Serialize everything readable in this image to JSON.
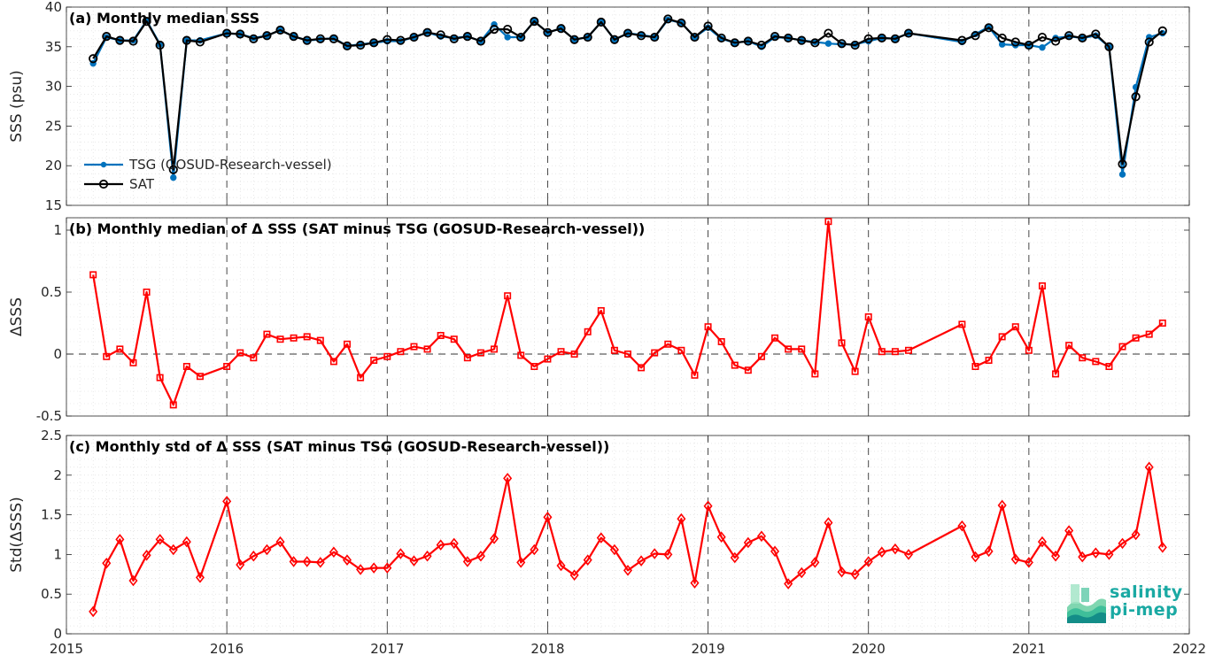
{
  "chart_data": [
    {
      "type": "line",
      "title": "(a) Monthly median SSS",
      "ylabel": "SSS (psu)",
      "xlim": [
        "2015",
        "2022"
      ],
      "ylim": [
        15,
        40
      ],
      "yticks": [
        15,
        20,
        25,
        30,
        35,
        40
      ],
      "legend_placement": "left",
      "series": [
        {
          "name": "TSG (GOSUD-Research-vessel)",
          "color": "#0072bd",
          "marker": "filled-circle",
          "x": [
            "2015-03",
            "2015-04",
            "2015-05",
            "2015-06",
            "2015-07",
            "2015-08",
            "2015-09",
            "2015-10",
            "2015-11",
            "2016-01",
            "2016-02",
            "2016-03",
            "2016-04",
            "2016-05",
            "2016-06",
            "2016-07",
            "2016-08",
            "2016-09",
            "2016-10",
            "2016-11",
            "2016-12",
            "2017-01",
            "2017-02",
            "2017-03",
            "2017-04",
            "2017-05",
            "2017-06",
            "2017-07",
            "2017-08",
            "2017-09",
            "2017-10",
            "2017-11",
            "2017-12",
            "2018-01",
            "2018-02",
            "2018-03",
            "2018-04",
            "2018-05",
            "2018-06",
            "2018-07",
            "2018-08",
            "2018-09",
            "2018-10",
            "2018-11",
            "2018-12",
            "2019-01",
            "2019-02",
            "2019-03",
            "2019-04",
            "2019-05",
            "2019-06",
            "2019-07",
            "2019-08",
            "2019-09",
            "2019-10",
            "2019-11",
            "2019-12",
            "2020-01",
            "2020-02",
            "2020-03",
            "2020-04",
            "2020-08",
            "2020-09",
            "2020-10",
            "2020-11",
            "2020-12",
            "2021-01",
            "2021-02",
            "2021-03",
            "2021-04",
            "2021-05",
            "2021-06",
            "2021-07",
            "2021-08",
            "2021-09",
            "2021-10",
            "2021-11"
          ],
          "values": [
            32.9,
            36.2,
            35.8,
            35.8,
            38.3,
            35.3,
            18.5,
            35.8,
            35.8,
            36.7,
            36.6,
            36.1,
            36.4,
            37.1,
            36.3,
            35.8,
            35.9,
            36.1,
            35.1,
            35.3,
            35.5,
            35.7,
            35.7,
            36.2,
            36.8,
            36.3,
            36.1,
            36.3,
            35.7,
            37.8,
            36.2,
            36.2,
            38.2,
            36.8,
            37.3,
            35.9,
            36.2,
            38.1,
            35.9,
            36.7,
            36.5,
            36.2,
            38.4,
            38.0,
            36.2,
            37.4,
            36.0,
            35.5,
            35.7,
            35.0,
            36.2,
            36.1,
            35.8,
            35.6,
            35.4,
            35.3,
            35.3,
            35.7,
            36.1,
            36.0,
            36.7,
            35.6,
            36.6,
            37.5,
            35.3,
            35.2,
            35.2,
            34.9,
            36.1,
            36.3,
            36.1,
            36.4,
            35.0,
            18.9,
            29.9,
            36.2,
            36.7
          ]
        },
        {
          "name": "SAT",
          "color": "#000000",
          "marker": "open-circle",
          "x": [
            "2015-03",
            "2015-04",
            "2015-05",
            "2015-06",
            "2015-07",
            "2015-08",
            "2015-09",
            "2015-10",
            "2015-11",
            "2016-01",
            "2016-02",
            "2016-03",
            "2016-04",
            "2016-05",
            "2016-06",
            "2016-07",
            "2016-08",
            "2016-09",
            "2016-10",
            "2016-11",
            "2016-12",
            "2017-01",
            "2017-02",
            "2017-03",
            "2017-04",
            "2017-05",
            "2017-06",
            "2017-07",
            "2017-08",
            "2017-09",
            "2017-10",
            "2017-11",
            "2017-12",
            "2018-01",
            "2018-02",
            "2018-03",
            "2018-04",
            "2018-05",
            "2018-06",
            "2018-07",
            "2018-08",
            "2018-09",
            "2018-10",
            "2018-11",
            "2018-12",
            "2019-01",
            "2019-02",
            "2019-03",
            "2019-04",
            "2019-05",
            "2019-06",
            "2019-07",
            "2019-08",
            "2019-09",
            "2019-10",
            "2019-11",
            "2019-12",
            "2020-01",
            "2020-02",
            "2020-03",
            "2020-04",
            "2020-08",
            "2020-09",
            "2020-10",
            "2020-11",
            "2020-12",
            "2021-01",
            "2021-02",
            "2021-03",
            "2021-04",
            "2021-05",
            "2021-06",
            "2021-07",
            "2021-08",
            "2021-09",
            "2021-10",
            "2021-11"
          ],
          "values": [
            33.5,
            36.3,
            35.8,
            35.7,
            38.2,
            35.2,
            19.5,
            35.8,
            35.6,
            36.7,
            36.6,
            36.0,
            36.4,
            37.1,
            36.3,
            35.8,
            36.0,
            36.0,
            35.1,
            35.2,
            35.5,
            35.9,
            35.8,
            36.2,
            36.8,
            36.5,
            36.0,
            36.3,
            35.7,
            37.2,
            37.2,
            36.2,
            38.2,
            36.8,
            37.3,
            35.9,
            36.2,
            38.1,
            35.9,
            36.7,
            36.4,
            36.2,
            38.5,
            38.0,
            36.2,
            37.6,
            36.1,
            35.5,
            35.7,
            35.2,
            36.3,
            36.1,
            35.8,
            35.5,
            36.7,
            35.4,
            35.2,
            36.0,
            36.1,
            36.0,
            36.7,
            35.8,
            36.4,
            37.4,
            36.1,
            35.6,
            35.2,
            36.2,
            35.7,
            36.4,
            36.1,
            36.6,
            35.0,
            20.2,
            28.7,
            35.6,
            37.0
          ]
        }
      ]
    },
    {
      "type": "line",
      "title": "(b) Monthly median of Δ SSS (SAT minus TSG (GOSUD-Research-vessel))",
      "ylabel": "ΔSSS",
      "xlim": [
        "2015",
        "2022"
      ],
      "ylim": [
        -0.5,
        1.1
      ],
      "yticks": [
        -0.5,
        0,
        0.5,
        1
      ],
      "ytick_labels": [
        "-0.5",
        "0",
        "0.5",
        "1"
      ],
      "series": [
        {
          "color": "#ff0000",
          "marker": "open-square",
          "x": [
            "2015-03",
            "2015-04",
            "2015-05",
            "2015-06",
            "2015-07",
            "2015-08",
            "2015-09",
            "2015-10",
            "2015-11",
            "2016-01",
            "2016-02",
            "2016-03",
            "2016-04",
            "2016-05",
            "2016-06",
            "2016-07",
            "2016-08",
            "2016-09",
            "2016-10",
            "2016-11",
            "2016-12",
            "2017-01",
            "2017-02",
            "2017-03",
            "2017-04",
            "2017-05",
            "2017-06",
            "2017-07",
            "2017-08",
            "2017-09",
            "2017-10",
            "2017-11",
            "2017-12",
            "2018-01",
            "2018-02",
            "2018-03",
            "2018-04",
            "2018-05",
            "2018-06",
            "2018-07",
            "2018-08",
            "2018-09",
            "2018-10",
            "2018-11",
            "2018-12",
            "2019-01",
            "2019-02",
            "2019-03",
            "2019-04",
            "2019-05",
            "2019-06",
            "2019-07",
            "2019-08",
            "2019-09",
            "2019-10",
            "2019-11",
            "2019-12",
            "2020-01",
            "2020-02",
            "2020-03",
            "2020-04",
            "2020-08",
            "2020-09",
            "2020-10",
            "2020-11",
            "2020-12",
            "2021-01",
            "2021-02",
            "2021-03",
            "2021-04",
            "2021-05",
            "2021-06",
            "2021-07",
            "2021-08",
            "2021-09",
            "2021-10",
            "2021-11"
          ],
          "values": [
            0.64,
            -0.02,
            0.04,
            -0.07,
            0.5,
            -0.19,
            -0.41,
            -0.1,
            -0.18,
            -0.1,
            0.01,
            -0.03,
            0.16,
            0.12,
            0.13,
            0.14,
            0.11,
            -0.06,
            0.08,
            -0.19,
            -0.05,
            -0.02,
            0.02,
            0.06,
            0.04,
            0.15,
            0.12,
            -0.03,
            0.01,
            0.04,
            0.47,
            -0.01,
            -0.1,
            -0.04,
            0.02,
            0.0,
            0.18,
            0.35,
            0.03,
            0.0,
            -0.11,
            0.01,
            0.08,
            0.03,
            -0.17,
            0.22,
            0.1,
            -0.09,
            -0.13,
            -0.02,
            0.13,
            0.04,
            0.04,
            -0.16,
            1.07,
            0.09,
            -0.14,
            0.3,
            0.02,
            0.02,
            0.03,
            0.24,
            -0.1,
            -0.05,
            0.14,
            0.22,
            0.03,
            0.55,
            -0.16,
            0.07,
            -0.03,
            -0.06,
            -0.1,
            0.06,
            0.13,
            0.16,
            0.25
          ]
        }
      ]
    },
    {
      "type": "line",
      "title": "(c) Monthly std of Δ SSS (SAT minus TSG (GOSUD-Research-vessel))",
      "ylabel": "Std(ΔSSS)",
      "xlim": [
        "2015",
        "2022"
      ],
      "ylim": [
        0,
        2.5
      ],
      "yticks": [
        0,
        0.5,
        1,
        1.5,
        2,
        2.5
      ],
      "xticks": [
        "2015",
        "2016",
        "2017",
        "2018",
        "2019",
        "2020",
        "2021",
        "2022"
      ],
      "series": [
        {
          "color": "#ff0000",
          "marker": "open-diamond",
          "x": [
            "2015-03",
            "2015-04",
            "2015-05",
            "2015-06",
            "2015-07",
            "2015-08",
            "2015-09",
            "2015-10",
            "2015-11",
            "2016-01",
            "2016-02",
            "2016-03",
            "2016-04",
            "2016-05",
            "2016-06",
            "2016-07",
            "2016-08",
            "2016-09",
            "2016-10",
            "2016-11",
            "2016-12",
            "2017-01",
            "2017-02",
            "2017-03",
            "2017-04",
            "2017-05",
            "2017-06",
            "2017-07",
            "2017-08",
            "2017-09",
            "2017-10",
            "2017-11",
            "2017-12",
            "2018-01",
            "2018-02",
            "2018-03",
            "2018-04",
            "2018-05",
            "2018-06",
            "2018-07",
            "2018-08",
            "2018-09",
            "2018-10",
            "2018-11",
            "2018-12",
            "2019-01",
            "2019-02",
            "2019-03",
            "2019-04",
            "2019-05",
            "2019-06",
            "2019-07",
            "2019-08",
            "2019-09",
            "2019-10",
            "2019-11",
            "2019-12",
            "2020-01",
            "2020-02",
            "2020-03",
            "2020-04",
            "2020-08",
            "2020-09",
            "2020-10",
            "2020-11",
            "2020-12",
            "2021-01",
            "2021-02",
            "2021-03",
            "2021-04",
            "2021-05",
            "2021-06",
            "2021-07",
            "2021-08",
            "2021-09",
            "2021-10",
            "2021-11"
          ],
          "values": [
            0.28,
            0.89,
            1.19,
            0.67,
            0.99,
            1.19,
            1.06,
            1.16,
            0.71,
            1.67,
            0.87,
            0.98,
            1.06,
            1.16,
            0.91,
            0.91,
            0.9,
            1.03,
            0.93,
            0.81,
            0.83,
            0.83,
            1.01,
            0.92,
            0.98,
            1.12,
            1.14,
            0.91,
            0.98,
            1.2,
            1.96,
            0.9,
            1.06,
            1.47,
            0.86,
            0.74,
            0.93,
            1.21,
            1.06,
            0.8,
            0.92,
            1.01,
            1.0,
            1.45,
            0.64,
            1.61,
            1.22,
            0.96,
            1.15,
            1.23,
            1.04,
            0.63,
            0.77,
            0.9,
            1.4,
            0.78,
            0.75,
            0.91,
            1.03,
            1.07,
            1.0,
            1.36,
            0.97,
            1.04,
            1.62,
            0.94,
            0.9,
            1.16,
            0.98,
            1.3,
            0.97,
            1.02,
            1.0,
            1.14,
            1.25,
            2.1,
            1.09
          ]
        }
      ]
    }
  ],
  "logo": {
    "line1": "salinity",
    "line2": "pi-mep"
  },
  "colors": {
    "tsg": "#0072bd",
    "sat": "#000000",
    "delta": "#ff0000",
    "logo": "#1aa9a3"
  }
}
